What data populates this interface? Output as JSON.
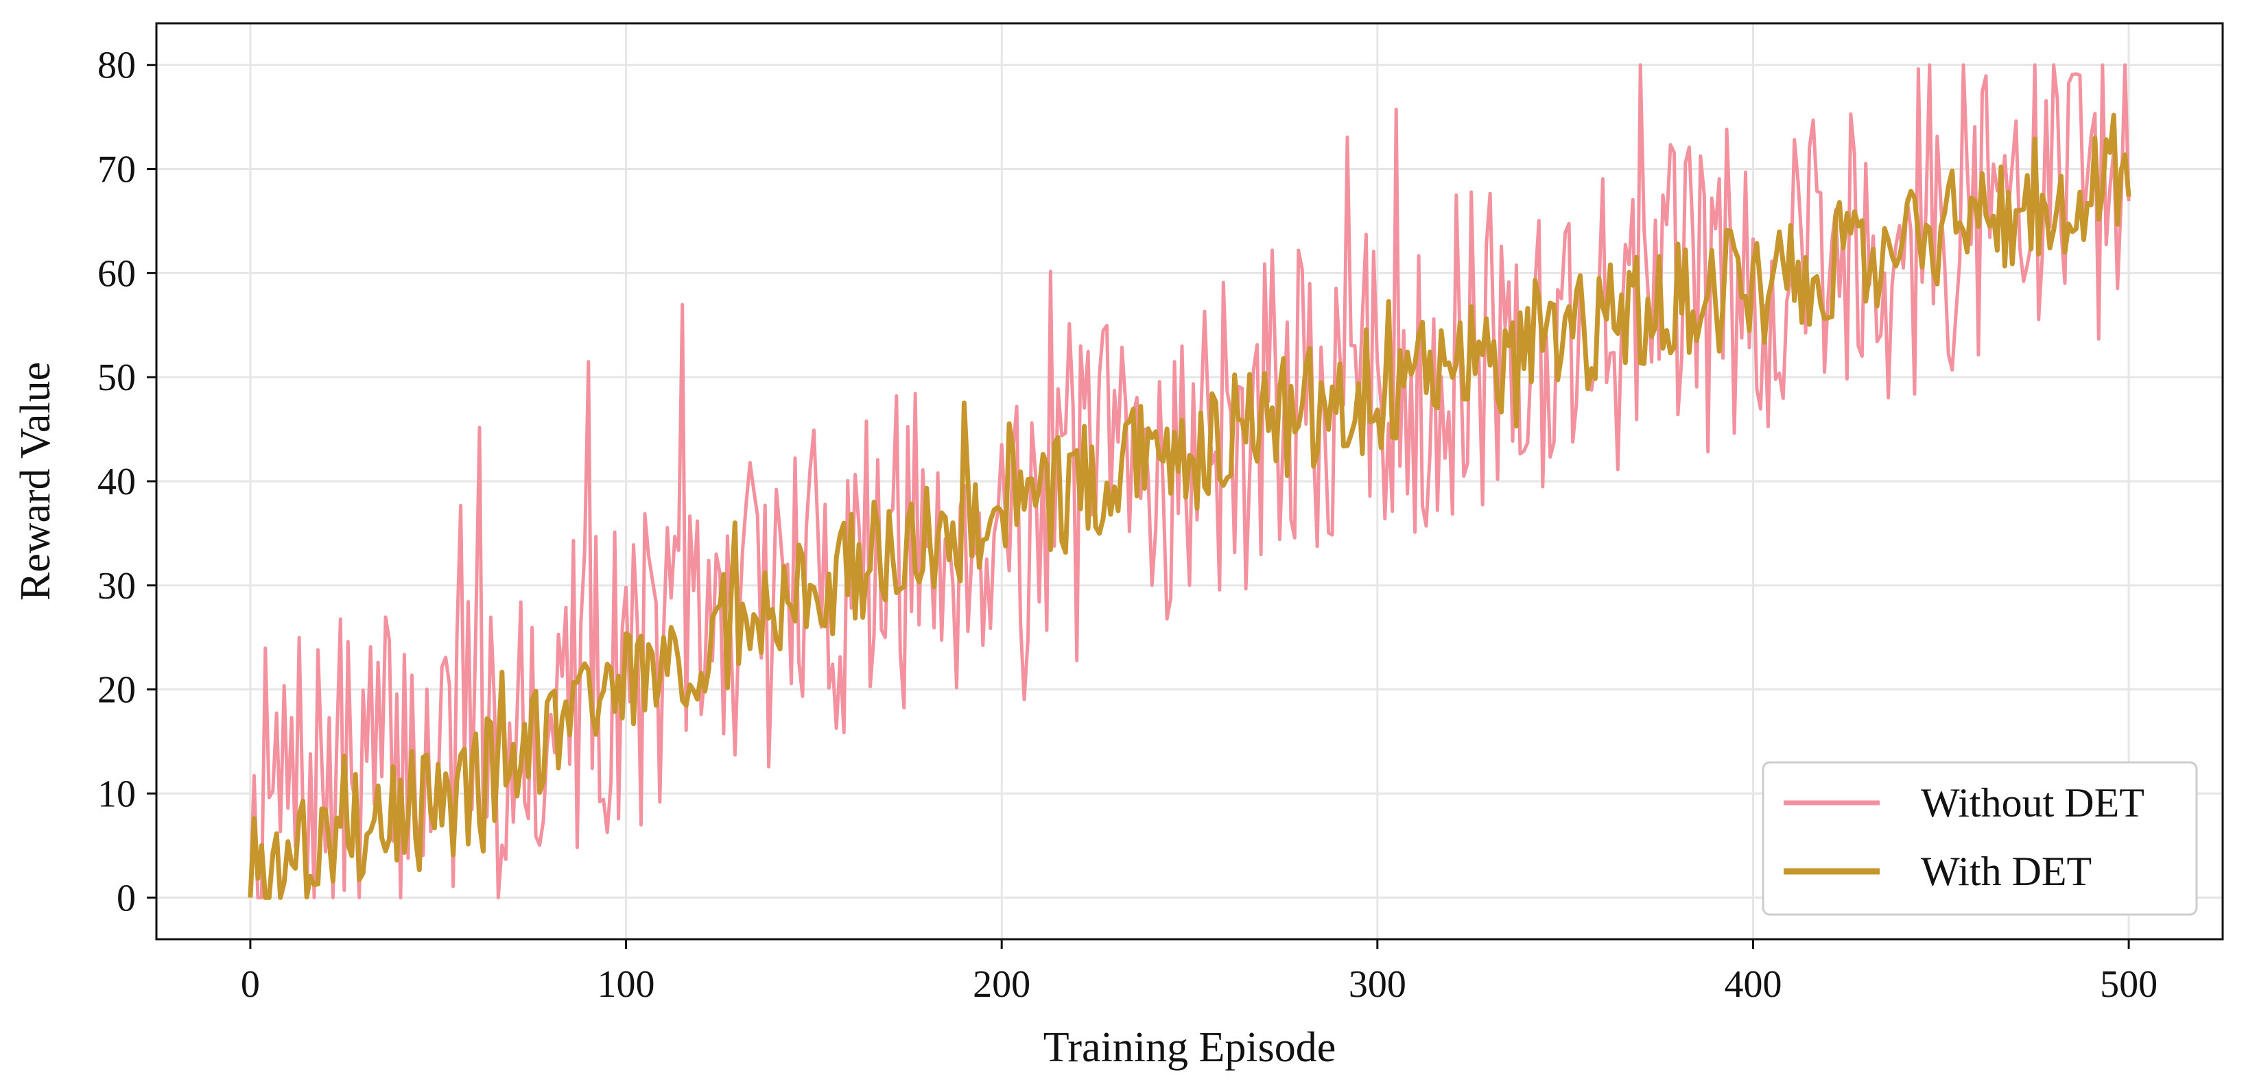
{
  "chart_data": {
    "type": "line",
    "title": "",
    "xlabel": "Training Episode",
    "ylabel": "Reward Value",
    "xlim": [
      -25,
      525
    ],
    "ylim": [
      -4,
      84
    ],
    "xticks": [
      0,
      100,
      200,
      300,
      400,
      500
    ],
    "yticks": [
      0,
      10,
      20,
      30,
      40,
      50,
      60,
      70,
      80
    ],
    "grid": true,
    "legend_position": "bottom-right",
    "colors": {
      "without": "#f4919f",
      "with": "#c6962d"
    },
    "series": [
      {
        "name": "Without DET",
        "color": "#f4919f",
        "seed": 7,
        "anchors": [
          [
            0,
            8
          ],
          [
            50,
            14
          ],
          [
            100,
            22
          ],
          [
            150,
            30
          ],
          [
            200,
            37
          ],
          [
            250,
            43
          ],
          [
            300,
            49
          ],
          [
            350,
            55
          ],
          [
            400,
            60
          ],
          [
            450,
            66
          ],
          [
            500,
            70
          ]
        ],
        "noise": 16
      },
      {
        "name": "With DET",
        "color": "#c6962d",
        "seed": 3,
        "anchors": [
          [
            0,
            3
          ],
          [
            50,
            9
          ],
          [
            100,
            20
          ],
          [
            150,
            30
          ],
          [
            200,
            37
          ],
          [
            250,
            43
          ],
          [
            300,
            49
          ],
          [
            350,
            54
          ],
          [
            400,
            59
          ],
          [
            450,
            64
          ],
          [
            500,
            70
          ]
        ],
        "noise": 6
      }
    ]
  }
}
